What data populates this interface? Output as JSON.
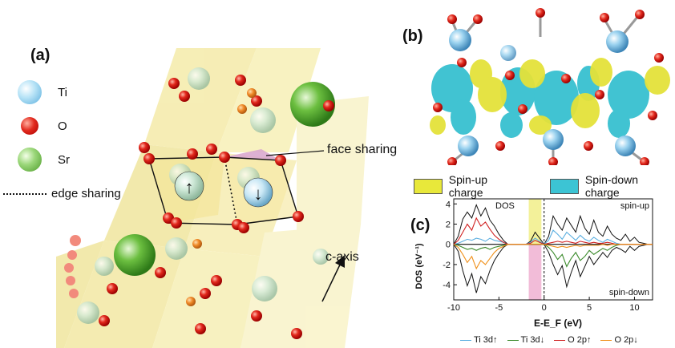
{
  "panel_a": {
    "label": "(a)",
    "legend": [
      {
        "name": "Ti",
        "color": "#8fd0f0"
      },
      {
        "name": "O",
        "color": "#e02020"
      },
      {
        "name": "Sr",
        "color": "#6cbf40"
      }
    ],
    "edge_label": "edge sharing",
    "face_label": "face sharing",
    "axis_label": "c-axis",
    "spin_up_glyph": "↑",
    "spin_down_glyph": "↓"
  },
  "panel_b": {
    "label": "(b)",
    "legend": [
      {
        "name": "Spin-up charge",
        "color": "#e8e83a"
      },
      {
        "name": "Spin-down charge",
        "color": "#3cc4d4"
      }
    ]
  },
  "panel_c": {
    "label": "(c)",
    "inset_label": "DOS",
    "spin_up_label": "spin-up",
    "spin_down_label": "spin-down"
  },
  "chart_data": {
    "type": "line",
    "xlabel": "E-E_F (eV)",
    "ylabel": "DOS (eV⁻¹)",
    "xlim": [
      -10,
      12
    ],
    "ylim": [
      -5.5,
      4.5
    ],
    "x_ticks": [
      -10,
      -5,
      0,
      5,
      10
    ],
    "y_ticks": [
      4,
      2,
      0,
      -2,
      -4
    ],
    "fermi_level": 0,
    "highlight": {
      "x_range": [
        -1.7,
        -0.3
      ],
      "up_color": "#f3f19a",
      "down_color": "#f2bcd8"
    },
    "x": [
      -10,
      -9.5,
      -9,
      -8.5,
      -8,
      -7.5,
      -7,
      -6.5,
      -6,
      -5.5,
      -5,
      -4.5,
      -4,
      -3.5,
      -3,
      -2.5,
      -2,
      -1.5,
      -1,
      -0.5,
      0,
      0.5,
      1,
      1.5,
      2,
      2.5,
      3,
      3.5,
      4,
      4.5,
      5,
      5.5,
      6,
      6.5,
      7,
      7.5,
      8,
      8.5,
      9,
      9.5,
      10,
      10.5,
      11,
      11.5,
      12
    ],
    "series": [
      {
        "name": "Ti 3d↑",
        "color": "#5aaee0",
        "values": [
          0,
          0.1,
          0.3,
          0.5,
          0.4,
          0.6,
          0.5,
          0.3,
          0.6,
          0.4,
          0.3,
          0.2,
          0,
          0,
          0,
          0,
          0,
          0.2,
          0.6,
          0.3,
          0,
          0.4,
          1.4,
          1.0,
          0.5,
          1.2,
          0.8,
          0.4,
          0.9,
          0.5,
          0.3,
          0.7,
          0.4,
          0.2,
          0.5,
          0.3,
          0.1,
          0,
          0,
          0,
          0,
          0,
          0,
          0,
          0
        ]
      },
      {
        "name": "Ti 3d↓",
        "color": "#3a8a2a",
        "values": [
          0,
          -0.1,
          -0.3,
          -0.5,
          -0.4,
          -0.6,
          -0.4,
          -0.3,
          -0.5,
          -0.3,
          -0.2,
          -0.1,
          0,
          0,
          0,
          0,
          0,
          0,
          0,
          0,
          0,
          -0.3,
          -0.8,
          -1.5,
          -1.0,
          -2.2,
          -1.4,
          -0.8,
          -1.6,
          -1.2,
          -0.6,
          -1.0,
          -0.7,
          -0.4,
          -0.6,
          -0.3,
          -0.1,
          0,
          0,
          0,
          0,
          0,
          0,
          0,
          0
        ]
      },
      {
        "name": "O 2p↑",
        "color": "#d02020",
        "values": [
          0,
          0.4,
          1.2,
          2.0,
          1.4,
          2.6,
          1.8,
          2.2,
          1.5,
          0.9,
          0.5,
          0.2,
          0,
          0,
          0,
          0,
          0,
          0.1,
          0.4,
          0.2,
          0,
          0.1,
          0.2,
          0.3,
          0.2,
          0.3,
          0.2,
          0.1,
          0.3,
          0.2,
          0.1,
          0.2,
          0.1,
          0.1,
          0.2,
          0.1,
          0,
          0,
          0,
          0,
          0,
          0,
          0,
          0,
          0
        ]
      },
      {
        "name": "O 2p↓",
        "color": "#f0901a",
        "values": [
          0,
          -0.3,
          -1.0,
          -1.8,
          -1.2,
          -2.4,
          -1.6,
          -2.0,
          -1.4,
          -0.8,
          -0.4,
          -0.2,
          0,
          0,
          0,
          0,
          0,
          0,
          0,
          0,
          0,
          -0.1,
          -0.2,
          -0.3,
          -0.2,
          -0.3,
          -0.2,
          -0.1,
          -0.2,
          -0.1,
          -0.1,
          -0.1,
          -0.1,
          0,
          -0.1,
          0,
          0,
          0,
          0,
          0,
          0,
          0,
          0,
          0,
          0
        ]
      }
    ],
    "total_dos": {
      "color": "#111111",
      "up": [
        0,
        0.8,
        2.5,
        3.2,
        2.6,
        3.9,
        2.8,
        3.6,
        2.4,
        1.8,
        1.0,
        0.4,
        0,
        0,
        0,
        0,
        0,
        0.3,
        1.2,
        0.6,
        0,
        0.8,
        2.8,
        2.0,
        1.4,
        2.6,
        1.9,
        1.2,
        2.8,
        1.6,
        1.0,
        2.4,
        1.2,
        0.8,
        1.8,
        1.0,
        0.6,
        0.4,
        1.0,
        0.3,
        0.7,
        0.2,
        0.1,
        0,
        0
      ],
      "down": [
        0,
        -0.7,
        -2.6,
        -4.1,
        -2.9,
        -4.8,
        -3.2,
        -3.9,
        -2.6,
        -1.6,
        -0.9,
        -0.3,
        0,
        0,
        0,
        0,
        0,
        0,
        0,
        0,
        0,
        -0.8,
        -2.0,
        -3.0,
        -2.1,
        -4.2,
        -2.8,
        -1.6,
        -3.2,
        -2.2,
        -1.2,
        -2.0,
        -1.4,
        -0.8,
        -1.3,
        -0.6,
        -0.3,
        -0.5,
        -0.8,
        -0.2,
        -0.6,
        -0.2,
        -0.1,
        0,
        0
      ]
    }
  }
}
